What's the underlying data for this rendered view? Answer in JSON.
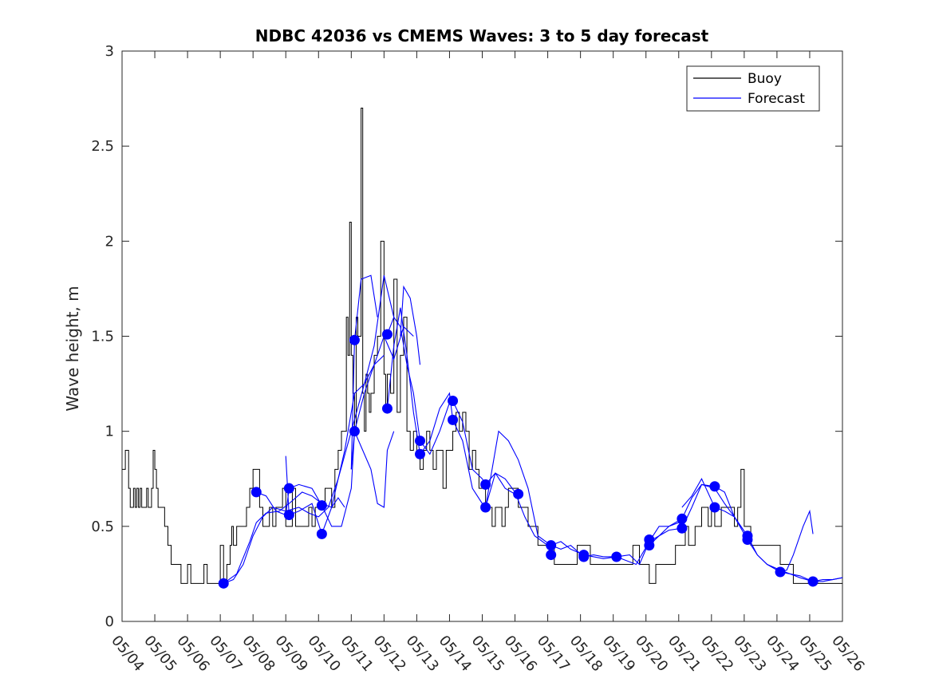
{
  "chart_data": {
    "type": "line",
    "title": "NDBC 42036 vs CMEMS Waves: 3 to 5 day forecast",
    "xlabel": "",
    "ylabel": "Wave height, m",
    "xlim": [
      0,
      22
    ],
    "ylim": [
      0,
      3
    ],
    "yticks": [
      0,
      0.5,
      1,
      1.5,
      2,
      2.5,
      3
    ],
    "ytick_labels": [
      "0",
      "0.5",
      "1",
      "1.5",
      "2",
      "2.5",
      "3"
    ],
    "xtick_labels": [
      "05/04",
      "05/05",
      "05/06",
      "05/07",
      "05/08",
      "05/09",
      "05/10",
      "05/11",
      "05/12",
      "05/13",
      "05/14",
      "05/15",
      "05/16",
      "05/17",
      "05/18",
      "05/19",
      "05/20",
      "05/21",
      "05/22",
      "05/23",
      "05/24",
      "05/25",
      "05/26"
    ],
    "x_unit": "days since 05/04",
    "grid": false,
    "legend": {
      "position": "top-right",
      "entries": [
        {
          "label": "Buoy",
          "color": "#000000"
        },
        {
          "label": "Forecast",
          "color": "#0000ff"
        }
      ]
    },
    "series": [
      {
        "name": "Buoy",
        "color": "#000000",
        "step": true,
        "x": [
          0,
          0.1,
          0.2,
          0.25,
          0.35,
          0.4,
          0.45,
          0.5,
          0.55,
          0.6,
          0.7,
          0.75,
          0.8,
          0.9,
          0.95,
          1,
          1.05,
          1.1,
          1.15,
          1.2,
          1.3,
          1.4,
          1.5,
          1.6,
          1.7,
          1.8,
          1.9,
          2.0,
          2.1,
          2.2,
          2.3,
          2.4,
          2.5,
          2.6,
          2.7,
          2.8,
          3.0,
          3.1,
          3.2,
          3.3,
          3.35,
          3.4,
          3.5,
          3.6,
          3.7,
          3.8,
          3.9,
          4.0,
          4.1,
          4.2,
          4.3,
          4.5,
          4.6,
          4.7,
          4.8,
          4.9,
          5.0,
          5.1,
          5.2,
          5.3,
          5.5,
          5.7,
          5.8,
          5.9,
          6.0,
          6.2,
          6.4,
          6.5,
          6.6,
          6.7,
          6.8,
          6.85,
          6.9,
          6.95,
          7.0,
          7.05,
          7.1,
          7.15,
          7.2,
          7.3,
          7.35,
          7.4,
          7.45,
          7.5,
          7.55,
          7.6,
          7.7,
          7.8,
          7.9,
          8.0,
          8.05,
          8.1,
          8.2,
          8.3,
          8.4,
          8.5,
          8.6,
          8.7,
          8.8,
          8.9,
          9.0,
          9.1,
          9.2,
          9.3,
          9.4,
          9.5,
          9.6,
          9.7,
          9.8,
          9.9,
          10.0,
          10.1,
          10.2,
          10.3,
          10.4,
          10.5,
          10.6,
          10.7,
          10.8,
          10.9,
          11.0,
          11.1,
          11.2,
          11.3,
          11.4,
          11.5,
          11.6,
          11.7,
          11.8,
          11.9,
          12.0,
          12.1,
          12.2,
          12.3,
          12.4,
          12.5,
          12.6,
          12.7,
          12.8,
          12.9,
          13.0,
          13.1,
          13.2,
          13.3,
          13.5,
          13.7,
          13.9,
          14.1,
          14.3,
          14.5,
          14.7,
          14.9,
          15.0,
          15.2,
          15.4,
          15.6,
          15.8,
          15.9,
          16.0,
          16.1,
          16.3,
          16.5,
          16.7,
          16.9,
          17.0,
          17.1,
          17.2,
          17.3,
          17.5,
          17.7,
          17.9,
          18.0,
          18.1,
          18.3,
          18.5,
          18.6,
          18.7,
          18.8,
          18.9,
          19.0,
          19.1,
          19.2,
          19.3,
          19.5,
          19.7,
          19.9,
          20.1,
          20.3,
          20.5,
          20.7,
          20.9,
          21.1,
          21.3,
          21.5,
          21.7,
          21.9,
          22.0
        ],
        "y": [
          0.8,
          0.9,
          0.7,
          0.6,
          0.7,
          0.6,
          0.7,
          0.6,
          0.7,
          0.6,
          0.6,
          0.7,
          0.6,
          0.7,
          0.9,
          0.8,
          0.7,
          0.6,
          0.6,
          0.6,
          0.5,
          0.4,
          0.3,
          0.3,
          0.3,
          0.2,
          0.2,
          0.3,
          0.2,
          0.2,
          0.2,
          0.2,
          0.3,
          0.2,
          0.2,
          0.2,
          0.4,
          0.2,
          0.3,
          0.4,
          0.5,
          0.4,
          0.5,
          0.5,
          0.5,
          0.6,
          0.7,
          0.8,
          0.8,
          0.6,
          0.5,
          0.6,
          0.5,
          0.6,
          0.6,
          0.7,
          0.5,
          0.5,
          0.7,
          0.5,
          0.5,
          0.6,
          0.5,
          0.6,
          0.6,
          0.7,
          0.6,
          0.8,
          0.9,
          1.0,
          1.0,
          1.6,
          1.4,
          2.1,
          1.4,
          1.2,
          1.0,
          1.6,
          1.5,
          2.7,
          1.2,
          1.0,
          1.3,
          1.2,
          1.1,
          1.2,
          1.4,
          1.5,
          2.0,
          1.3,
          1.1,
          1.3,
          1.2,
          1.8,
          1.1,
          1.4,
          1.6,
          1.0,
          0.9,
          1.0,
          0.9,
          0.8,
          0.9,
          1.0,
          0.9,
          0.8,
          0.9,
          0.9,
          0.7,
          0.9,
          0.9,
          1.0,
          1.1,
          1.0,
          1.1,
          1.0,
          0.8,
          0.9,
          0.8,
          0.7,
          0.7,
          0.6,
          0.6,
          0.5,
          0.6,
          0.6,
          0.5,
          0.6,
          0.7,
          0.7,
          0.7,
          0.6,
          0.6,
          0.6,
          0.5,
          0.5,
          0.5,
          0.4,
          0.4,
          0.4,
          0.4,
          0.4,
          0.3,
          0.3,
          0.3,
          0.3,
          0.4,
          0.4,
          0.3,
          0.3,
          0.3,
          0.3,
          0.3,
          0.3,
          0.3,
          0.4,
          0.3,
          0.3,
          0.3,
          0.2,
          0.3,
          0.3,
          0.3,
          0.4,
          0.4,
          0.4,
          0.5,
          0.4,
          0.5,
          0.6,
          0.5,
          0.6,
          0.5,
          0.6,
          0.6,
          0.6,
          0.5,
          0.6,
          0.8,
          0.5,
          0.5,
          0.4,
          0.4,
          0.4,
          0.4,
          0.4,
          0.3,
          0.3,
          0.2,
          0.2,
          0.2,
          0.2,
          0.2,
          0.2,
          0.2,
          0.2,
          0.2
        ]
      },
      {
        "name": "Forecast",
        "color": "#0000ff",
        "runs": [
          {
            "x": [
              3.1,
              3.4,
              3.7,
              4.0,
              4.3,
              4.6,
              5.0,
              5.4,
              5.7,
              6.0,
              6.3,
              6.6,
              7.0,
              7.4,
              7.7,
              8.0
            ],
            "y": [
              0.2,
              0.22,
              0.3,
              0.45,
              0.55,
              0.6,
              0.58,
              0.6,
              0.57,
              0.55,
              0.6,
              0.75,
              1.0,
              1.25,
              1.35,
              1.4
            ]
          },
          {
            "x": [
              3.1,
              3.5,
              3.9,
              4.1,
              4.4,
              4.8,
              5.1,
              5.5,
              5.8,
              6.1,
              6.4,
              6.8,
              7.1,
              7.4,
              7.7,
              8.0,
              8.3
            ],
            "y": [
              0.2,
              0.25,
              0.42,
              0.52,
              0.57,
              0.58,
              0.62,
              0.68,
              0.66,
              0.62,
              0.6,
              0.9,
              1.2,
              1.25,
              1.45,
              1.82,
              1.6
            ]
          },
          {
            "x": [
              4.1,
              4.4,
              4.7,
              5.0,
              5.1,
              5.4,
              5.8,
              6.1,
              6.4,
              6.7,
              7.0,
              7.1,
              7.4,
              7.7,
              8.0,
              8.3,
              8.6,
              8.9
            ],
            "y": [
              0.68,
              0.66,
              0.58,
              0.56,
              0.7,
              0.72,
              0.7,
              0.61,
              0.5,
              0.5,
              0.7,
              1.0,
              1.2,
              1.35,
              1.5,
              1.38,
              1.55,
              1.5
            ]
          },
          {
            "x": [
              5.0,
              5.1,
              5.4,
              5.8,
              6.1,
              6.4,
              6.6,
              6.8
            ],
            "y": [
              0.87,
              0.56,
              0.58,
              0.62,
              0.46,
              0.6,
              0.65,
              0.6
            ]
          },
          {
            "x": [
              7.0,
              7.1,
              7.3,
              7.6,
              7.8
            ],
            "y": [
              0.8,
              1.48,
              1.8,
              1.82,
              1.6
            ]
          },
          {
            "x": [
              7.0,
              7.1,
              7.3,
              7.6,
              7.8,
              8.0,
              8.1,
              8.3
            ],
            "y": [
              0.8,
              1.0,
              0.92,
              0.8,
              0.62,
              0.6,
              0.9,
              1.0
            ]
          },
          {
            "x": [
              8.1,
              8.3,
              8.5,
              8.7,
              8.9,
              9.1,
              9.4,
              9.7,
              10.0,
              10.1,
              10.4,
              10.7,
              11.0,
              11.1,
              11.4,
              11.7,
              12.0,
              12.1
            ],
            "y": [
              1.51,
              1.6,
              1.55,
              1.35,
              1.2,
              0.95,
              0.88,
              1.0,
              1.15,
              1.16,
              1.05,
              0.8,
              0.75,
              0.72,
              0.78,
              0.7,
              0.67,
              0.67
            ]
          },
          {
            "x": [
              8.1,
              8.3,
              8.5,
              8.7,
              8.9,
              9.1,
              9.4,
              9.7,
              10.0,
              10.1,
              10.4,
              10.7,
              11.0,
              11.1,
              11.4,
              11.7,
              12.0,
              12.3,
              12.6,
              13.0
            ],
            "y": [
              1.12,
              1.45,
              1.65,
              1.4,
              1.1,
              0.88,
              0.95,
              1.12,
              1.2,
              1.06,
              0.95,
              0.7,
              0.62,
              0.6,
              0.78,
              0.75,
              0.68,
              0.55,
              0.45,
              0.4
            ]
          },
          {
            "x": [
              8.5,
              8.6,
              8.8,
              9.0,
              9.1
            ],
            "y": [
              1.5,
              1.76,
              1.7,
              1.5,
              1.35
            ]
          },
          {
            "x": [
              11.1,
              11.3,
              11.5,
              11.8,
              12.1,
              12.4,
              12.7,
              13.1,
              13.4,
              13.7,
              14.1,
              14.4,
              14.7,
              15.1,
              15.5,
              15.8,
              16.1,
              16.4,
              16.7,
              17.0,
              17.1
            ],
            "y": [
              0.6,
              0.8,
              1.0,
              0.95,
              0.85,
              0.7,
              0.45,
              0.4,
              0.42,
              0.38,
              0.35,
              0.34,
              0.33,
              0.34,
              0.35,
              0.3,
              0.42,
              0.5,
              0.5,
              0.52,
              0.5
            ]
          },
          {
            "x": [
              13.1,
              13.4,
              13.7,
              14.1,
              14.4,
              14.7,
              15.1,
              15.4,
              15.7,
              16.1,
              16.4,
              16.7,
              17.1,
              17.4,
              17.7,
              18.1,
              18.4,
              18.7,
              19.1
            ],
            "y": [
              0.4,
              0.38,
              0.4,
              0.34,
              0.35,
              0.34,
              0.34,
              0.32,
              0.3,
              0.42,
              0.45,
              0.5,
              0.54,
              0.65,
              0.72,
              0.7,
              0.62,
              0.55,
              0.45
            ]
          },
          {
            "x": [
              16.1,
              16.4,
              16.7,
              17.1,
              17.4,
              17.7,
              18.1,
              18.4,
              18.7,
              19.1,
              19.4,
              19.7,
              20.1,
              20.4,
              20.7,
              21.1,
              21.4,
              21.7,
              22.0
            ],
            "y": [
              0.4,
              0.45,
              0.48,
              0.49,
              0.6,
              0.72,
              0.71,
              0.68,
              0.55,
              0.43,
              0.35,
              0.3,
              0.26,
              0.25,
              0.24,
              0.21,
              0.21,
              0.22,
              0.23
            ]
          },
          {
            "x": [
              17.1,
              17.4,
              17.7,
              18.1,
              18.4,
              18.7,
              19.1,
              19.4,
              19.7,
              20.1,
              20.4,
              20.7,
              21.1,
              21.4,
              21.7,
              22.0
            ],
            "y": [
              0.6,
              0.66,
              0.75,
              0.6,
              0.58,
              0.55,
              0.45,
              0.35,
              0.3,
              0.27,
              0.25,
              0.23,
              0.21,
              0.22,
              0.22,
              0.23
            ]
          },
          {
            "x": [
              20.1,
              20.3,
              20.5,
              20.8,
              21.0,
              21.1
            ],
            "y": [
              0.26,
              0.27,
              0.35,
              0.5,
              0.58,
              0.46
            ]
          }
        ],
        "markers": {
          "x": [
            3.1,
            4.1,
            5.1,
            5.1,
            6.1,
            6.1,
            7.1,
            7.1,
            8.1,
            8.1,
            9.1,
            9.1,
            10.1,
            10.1,
            11.1,
            11.1,
            12.1,
            13.1,
            13.1,
            14.1,
            14.1,
            15.1,
            16.1,
            16.1,
            17.1,
            17.1,
            18.1,
            18.1,
            19.1,
            19.1,
            20.1,
            21.1
          ],
          "y": [
            0.2,
            0.68,
            0.7,
            0.56,
            0.61,
            0.46,
            1.48,
            1.0,
            1.51,
            1.12,
            0.95,
            0.88,
            1.16,
            1.06,
            0.72,
            0.6,
            0.67,
            0.4,
            0.35,
            0.35,
            0.34,
            0.34,
            0.43,
            0.4,
            0.54,
            0.49,
            0.71,
            0.6,
            0.45,
            0.43,
            0.26,
            0.21
          ]
        }
      }
    ]
  }
}
